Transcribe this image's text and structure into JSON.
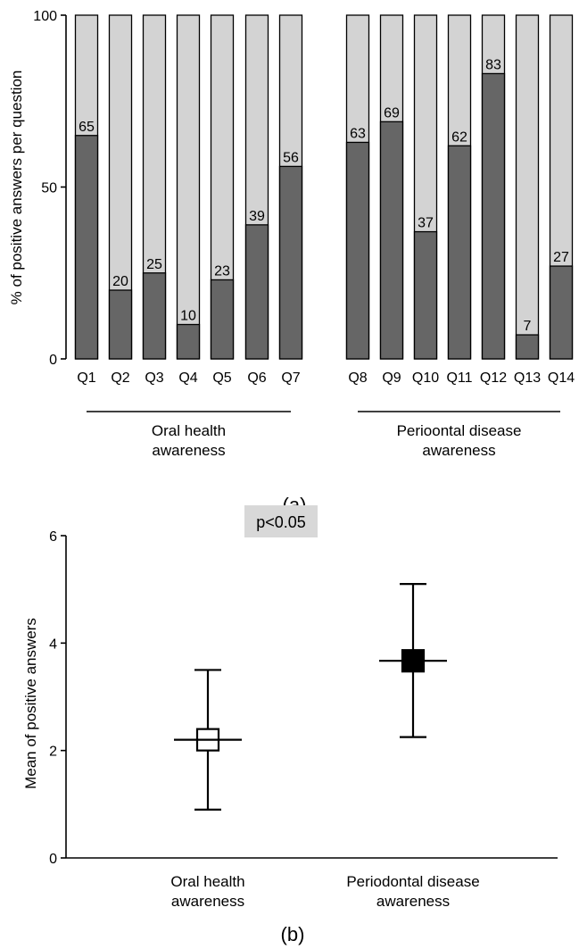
{
  "colors": {
    "filled": "#666666",
    "unfilled": "#d3d3d3",
    "stroke": "#000000",
    "pbox": "#d8d8d8"
  },
  "chart_data": [
    {
      "type": "bar",
      "stacked": true,
      "panel_label": "(a)",
      "ylabel": "% of positive answers per question",
      "ylim": [
        0,
        100
      ],
      "yticks": [
        "0",
        "50",
        "100"
      ],
      "categories": [
        "Q1",
        "Q2",
        "Q3",
        "Q4",
        "Q5",
        "Q6",
        "Q7",
        "Q8",
        "Q9",
        "Q10",
        "Q11",
        "Q12",
        "Q13",
        "Q14"
      ],
      "values": [
        65,
        20,
        25,
        10,
        23,
        39,
        56,
        63,
        69,
        37,
        62,
        83,
        7,
        27
      ],
      "value_labels": [
        "65",
        "20",
        "25",
        "10",
        "23",
        "39",
        "56",
        "63",
        "69",
        "37",
        "62",
        "83",
        "7",
        "27"
      ],
      "groups": [
        {
          "label_lines": [
            "Oral health",
            "awareness"
          ],
          "first": 0,
          "last": 6
        },
        {
          "label_lines": [
            "Perioontal disease",
            "awareness"
          ],
          "first": 7,
          "last": 13
        }
      ]
    },
    {
      "type": "scatter",
      "panel_label": "(b)",
      "annotation": "p<0.05",
      "ylabel": "Mean of positive answers",
      "ylim": [
        0,
        6
      ],
      "yticks": [
        "0",
        "2",
        "4",
        "6"
      ],
      "points": [
        {
          "label_lines": [
            "Oral health",
            "awareness"
          ],
          "mean": 2.2,
          "upper": 3.5,
          "lower": 0.9,
          "marker": "open-square"
        },
        {
          "label_lines": [
            "Periodontal disease",
            "awareness"
          ],
          "mean": 3.67,
          "upper": 5.1,
          "lower": 2.25,
          "marker": "filled-square"
        }
      ]
    }
  ]
}
